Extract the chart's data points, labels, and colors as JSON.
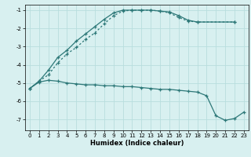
{
  "xlabel": "Humidex (Indice chaleur)",
  "background_color": "#d8f0f0",
  "grid_color": "#b8dede",
  "line_color": "#2d7878",
  "xlim": [
    -0.5,
    23.5
  ],
  "ylim": [
    -7.6,
    -0.7
  ],
  "yticks": [
    -7,
    -6,
    -5,
    -4,
    -3,
    -2,
    -1
  ],
  "xticks": [
    0,
    1,
    2,
    3,
    4,
    5,
    6,
    7,
    8,
    9,
    10,
    11,
    12,
    13,
    14,
    15,
    16,
    17,
    18,
    19,
    20,
    21,
    22,
    23
  ],
  "line1_x": [
    0,
    1,
    2,
    3,
    4,
    5,
    6,
    7,
    8,
    9,
    10,
    11,
    12,
    13,
    14,
    15,
    16,
    17,
    18,
    22
  ],
  "line1_y": [
    -5.3,
    -4.9,
    -4.3,
    -3.6,
    -3.2,
    -2.7,
    -2.3,
    -1.9,
    -1.5,
    -1.15,
    -1.0,
    -1.0,
    -1.0,
    -1.0,
    -1.05,
    -1.1,
    -1.3,
    -1.55,
    -1.65,
    -1.65
  ],
  "line2_x": [
    0,
    1,
    2,
    3,
    4,
    5,
    6,
    7,
    8,
    9,
    10,
    11,
    12,
    13,
    14,
    15,
    16,
    17,
    18,
    19,
    20,
    21,
    22,
    23
  ],
  "line2_y": [
    -5.3,
    -4.95,
    -4.85,
    -4.9,
    -5.0,
    -5.05,
    -5.1,
    -5.1,
    -5.15,
    -5.15,
    -5.2,
    -5.2,
    -5.25,
    -5.3,
    -5.35,
    -5.35,
    -5.4,
    -5.45,
    -5.5,
    -5.7,
    -6.8,
    -7.05,
    -6.95,
    -6.6
  ],
  "line3_x": [
    0,
    1,
    2,
    3,
    4,
    5,
    6,
    7,
    8,
    9,
    10,
    11,
    12,
    13,
    14,
    15,
    16,
    17,
    18,
    22
  ],
  "line3_y": [
    -5.3,
    -4.9,
    -4.55,
    -3.9,
    -3.4,
    -3.05,
    -2.6,
    -2.25,
    -1.75,
    -1.3,
    -1.05,
    -1.0,
    -1.0,
    -1.0,
    -1.05,
    -1.15,
    -1.4,
    -1.6,
    -1.65,
    -1.65
  ]
}
